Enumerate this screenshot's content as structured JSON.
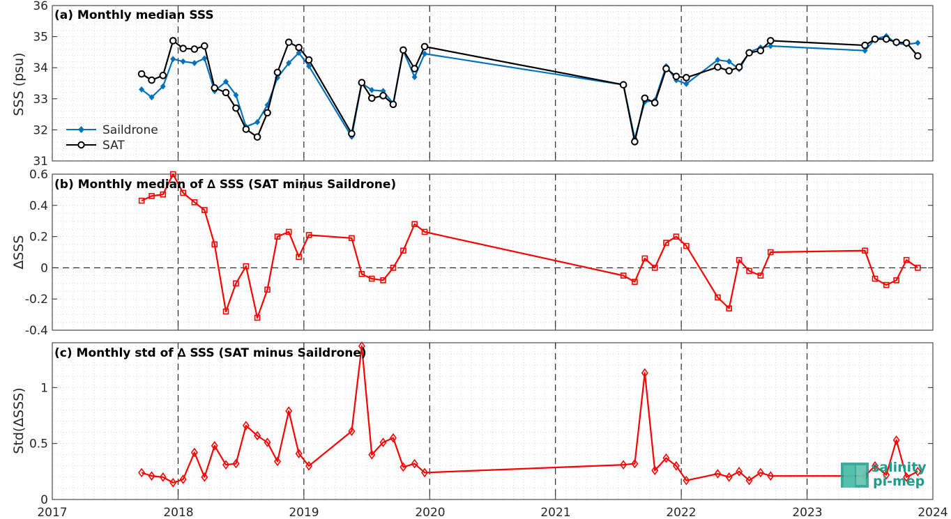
{
  "x_ticks": [
    "2017",
    "2018",
    "2019",
    "2020",
    "2021",
    "2022",
    "2023",
    "2024"
  ],
  "year_boundaries": [
    2018,
    2019,
    2020,
    2021,
    2022,
    2023
  ],
  "colors": {
    "saildrone": "#0072BD",
    "sat": "#000000",
    "delta": "#FF0000",
    "logo": "#1e9c8c"
  },
  "logo": {
    "line1": "salinity",
    "line2": "pi-mep"
  },
  "chart_data": [
    {
      "type": "line",
      "title": "(a) Monthly median SSS",
      "ylabel": "SSS (psu)",
      "ylim": [
        31,
        36
      ],
      "yticks": [
        31,
        32,
        33,
        34,
        35,
        36
      ],
      "xlim": [
        2017,
        2024
      ],
      "grid": true,
      "legend": "lower-left",
      "series": [
        {
          "name": "Saildrone",
          "marker": "diamond-filled",
          "color": "#0072BD",
          "x": [
            2017.71,
            2017.79,
            2017.88,
            2017.96,
            2018.04,
            2018.13,
            2018.21,
            2018.29,
            2018.38,
            2018.46,
            2018.54,
            2018.63,
            2018.71,
            2018.79,
            2018.88,
            2018.96,
            2019.04,
            2019.38,
            2019.46,
            2019.54,
            2019.63,
            2019.71,
            2019.79,
            2019.88,
            2019.96,
            2021.54,
            2021.63,
            2021.71,
            2021.79,
            2021.88,
            2021.96,
            2022.04,
            2022.29,
            2022.38,
            2022.46,
            2022.54,
            2022.63,
            2022.71,
            2023.46,
            2023.54,
            2023.63,
            2023.71,
            2023.79,
            2023.88
          ],
          "y": [
            33.3,
            33.05,
            33.4,
            34.28,
            34.2,
            34.15,
            34.3,
            33.25,
            33.55,
            33.12,
            32.1,
            32.25,
            32.8,
            33.68,
            34.15,
            34.48,
            34.05,
            31.78,
            33.5,
            33.28,
            33.25,
            32.85,
            34.55,
            33.7,
            34.45,
            33.45,
            31.72,
            32.9,
            32.95,
            34.05,
            33.6,
            33.48,
            34.25,
            34.2,
            33.95,
            34.5,
            34.65,
            34.7,
            34.55,
            34.92,
            35.02,
            34.78,
            34.75,
            34.8
          ]
        },
        {
          "name": "SAT",
          "marker": "circle-open",
          "color": "#000000",
          "x": [
            2017.71,
            2017.79,
            2017.88,
            2017.96,
            2018.04,
            2018.13,
            2018.21,
            2018.29,
            2018.38,
            2018.46,
            2018.54,
            2018.63,
            2018.71,
            2018.79,
            2018.88,
            2018.96,
            2019.04,
            2019.38,
            2019.46,
            2019.54,
            2019.63,
            2019.71,
            2019.79,
            2019.88,
            2019.96,
            2021.54,
            2021.63,
            2021.71,
            2021.79,
            2021.88,
            2021.96,
            2022.04,
            2022.29,
            2022.38,
            2022.46,
            2022.54,
            2022.63,
            2022.71,
            2023.46,
            2023.54,
            2023.63,
            2023.71,
            2023.79,
            2023.88
          ],
          "y": [
            33.8,
            33.6,
            33.75,
            34.87,
            34.62,
            34.6,
            34.7,
            33.35,
            33.2,
            32.7,
            32.02,
            31.77,
            32.55,
            33.85,
            34.82,
            34.65,
            34.25,
            31.88,
            33.52,
            33.02,
            33.1,
            32.82,
            34.57,
            33.97,
            34.68,
            33.45,
            31.62,
            33.02,
            32.87,
            33.97,
            33.72,
            33.68,
            34.02,
            33.9,
            34.02,
            34.48,
            34.55,
            34.87,
            34.72,
            34.92,
            34.92,
            34.82,
            34.8,
            34.38
          ]
        }
      ]
    },
    {
      "type": "line",
      "title": "(b) Monthly median of ∆ SSS (SAT minus Saildrone)",
      "ylabel": "∆SSS",
      "ylim": [
        -0.4,
        0.6
      ],
      "yticks": [
        -0.4,
        -0.2,
        0,
        0.2,
        0.4,
        0.6
      ],
      "ytick_labels": [
        "-0.4",
        "-0.2",
        "0",
        "0.2",
        "0.4",
        "0.6"
      ],
      "xlim": [
        2017,
        2024
      ],
      "grid": true,
      "zero_line": true,
      "series": [
        {
          "name": "∆ SSS",
          "marker": "square-open",
          "color": "#FF0000",
          "x": [
            2017.71,
            2017.79,
            2017.88,
            2017.96,
            2018.04,
            2018.13,
            2018.21,
            2018.29,
            2018.38,
            2018.46,
            2018.54,
            2018.63,
            2018.71,
            2018.79,
            2018.88,
            2018.96,
            2019.04,
            2019.38,
            2019.46,
            2019.54,
            2019.63,
            2019.71,
            2019.79,
            2019.88,
            2019.96,
            2021.54,
            2021.63,
            2021.71,
            2021.79,
            2021.88,
            2021.96,
            2022.04,
            2022.29,
            2022.38,
            2022.46,
            2022.54,
            2022.63,
            2022.71,
            2023.46,
            2023.54,
            2023.63,
            2023.71,
            2023.79,
            2023.88
          ],
          "y": [
            0.43,
            0.46,
            0.47,
            0.6,
            0.48,
            0.42,
            0.37,
            0.15,
            -0.28,
            -0.1,
            0.01,
            -0.32,
            -0.14,
            0.2,
            0.23,
            0.07,
            0.21,
            0.19,
            -0.04,
            -0.07,
            -0.08,
            0.0,
            0.11,
            0.28,
            0.23,
            -0.05,
            -0.09,
            0.06,
            0.0,
            0.16,
            0.2,
            0.14,
            -0.19,
            -0.26,
            0.05,
            -0.02,
            -0.05,
            0.1,
            0.11,
            -0.07,
            -0.11,
            -0.08,
            0.05,
            0.0
          ]
        }
      ]
    },
    {
      "type": "line",
      "title": "(c) Monthly std of ∆ SSS (SAT minus Saildrone)",
      "ylabel": "Std(∆SSS)",
      "ylim": [
        0,
        1.4
      ],
      "yticks": [
        0,
        0.5,
        1
      ],
      "ytick_labels": [
        "0",
        "0.5",
        "1"
      ],
      "xlim": [
        2017,
        2024
      ],
      "grid": true,
      "series": [
        {
          "name": "Std(∆SSS)",
          "marker": "diamond-open",
          "color": "#FF0000",
          "x": [
            2017.71,
            2017.79,
            2017.88,
            2017.96,
            2018.04,
            2018.13,
            2018.21,
            2018.29,
            2018.38,
            2018.46,
            2018.54,
            2018.63,
            2018.71,
            2018.79,
            2018.88,
            2018.96,
            2019.04,
            2019.38,
            2019.46,
            2019.54,
            2019.63,
            2019.71,
            2019.79,
            2019.88,
            2019.96,
            2021.54,
            2021.63,
            2021.71,
            2021.79,
            2021.88,
            2021.96,
            2022.04,
            2022.29,
            2022.38,
            2022.46,
            2022.54,
            2022.63,
            2022.71,
            2023.46,
            2023.54,
            2023.63,
            2023.71,
            2023.79,
            2023.88
          ],
          "y": [
            0.24,
            0.21,
            0.2,
            0.15,
            0.18,
            0.42,
            0.2,
            0.48,
            0.31,
            0.32,
            0.66,
            0.57,
            0.51,
            0.34,
            0.79,
            0.41,
            0.3,
            0.61,
            1.37,
            0.4,
            0.51,
            0.55,
            0.29,
            0.32,
            0.24,
            0.31,
            0.32,
            1.13,
            0.26,
            0.37,
            0.3,
            0.17,
            0.23,
            0.2,
            0.25,
            0.17,
            0.24,
            0.21,
            0.21,
            0.3,
            0.22,
            0.53,
            0.2,
            0.25
          ]
        }
      ]
    }
  ]
}
